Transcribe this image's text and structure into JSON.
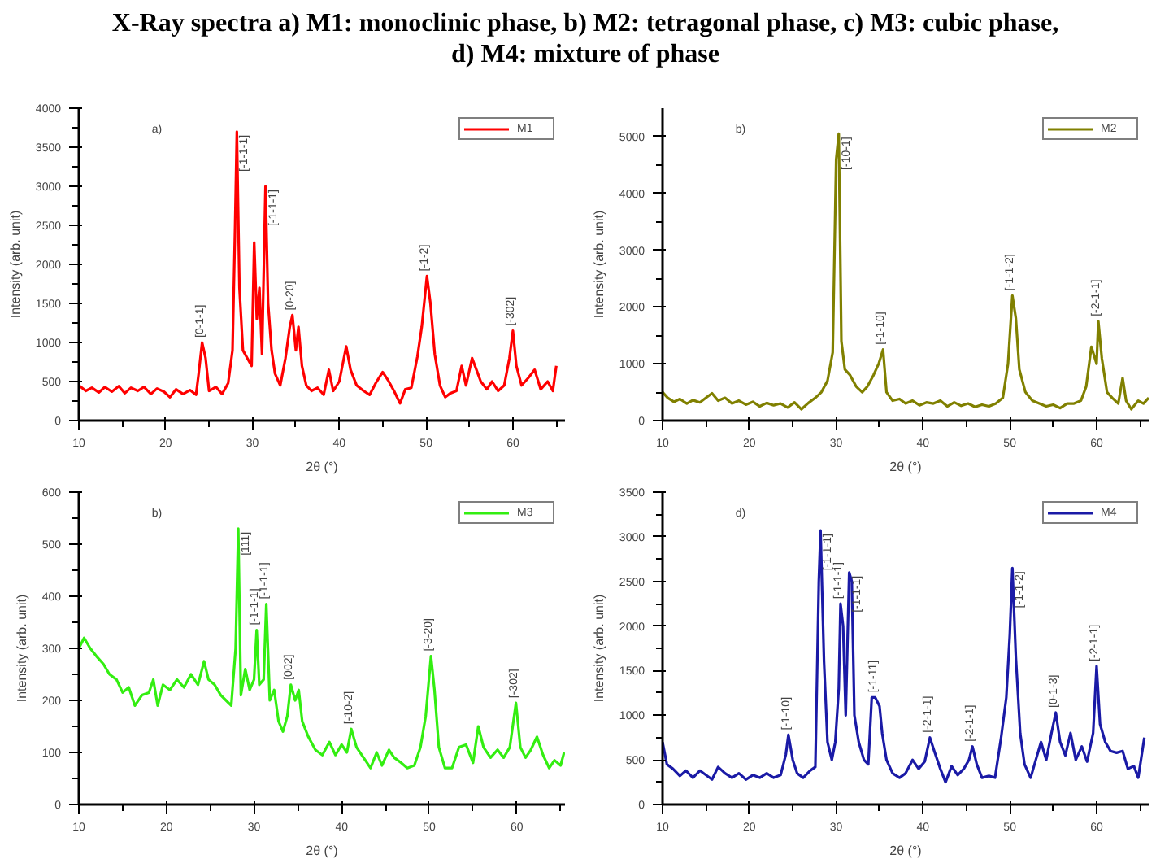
{
  "chart_data": [
    {
      "type": "line",
      "title": "X-Ray spectra a) M1: monoclinic phase, b) M2: tetragonal phase, c) M3: cubic phase, d) M4: mixture of phase",
      "xlabel": "2θ (°)",
      "ylabel": "Intensity (arb. unit)",
      "xlim": [
        10,
        66
      ],
      "ylim": [
        0,
        4000
      ],
      "xticks": [
        10,
        20,
        30,
        40,
        50,
        60
      ],
      "yticks": [
        0,
        500,
        1000,
        1500,
        2000,
        2500,
        3000,
        3500,
        4000
      ],
      "grid": false,
      "legend": "top right",
      "annotations": [
        "a)",
        {
          "text": "[0-1-1]",
          "x": 24.2,
          "y": 1000
        },
        {
          "text": "[-1-1-1]",
          "x": 28.2,
          "y": 3700
        },
        {
          "text": "[-1-1-1]",
          "x": 31.5,
          "y": 3000
        },
        {
          "text": "[0-20]",
          "x": 34.6,
          "y": 1350
        },
        {
          "text": "[-1-2]",
          "x": 50.1,
          "y": 1850
        },
        {
          "text": "[-302]",
          "x": 60,
          "y": 1150
        }
      ],
      "series": [
        {
          "name": "M1",
          "color": "#ff0000",
          "x": [
            10,
            10.8,
            11.5,
            12.3,
            13,
            13.8,
            14.6,
            15.3,
            16,
            16.8,
            17.5,
            18.3,
            19,
            19.8,
            20.5,
            21.2,
            22,
            22.8,
            23.5,
            23.8,
            24.2,
            24.6,
            25,
            25.8,
            26.5,
            27.2,
            27.7,
            28.0,
            28.2,
            28.5,
            28.9,
            29.4,
            29.9,
            30.2,
            30.5,
            30.8,
            31.1,
            31.5,
            31.8,
            32.2,
            32.6,
            33.2,
            33.8,
            34.3,
            34.6,
            35,
            35.3,
            35.7,
            36.2,
            36.8,
            37.5,
            38.2,
            38.8,
            39.3,
            40,
            40.8,
            41.3,
            42,
            42.8,
            43.5,
            44.2,
            45,
            45.6,
            46.3,
            47,
            47.6,
            48.3,
            49,
            49.5,
            50.1,
            50.5,
            51,
            51.6,
            52.2,
            52.8,
            53.5,
            54.1,
            54.6,
            55.3,
            55.8,
            56.3,
            57,
            57.6,
            58.3,
            59,
            59.6,
            60,
            60.4,
            61,
            61.8,
            62.5,
            63.2,
            64,
            64.6,
            65
          ],
          "values": [
            450,
            380,
            420,
            360,
            430,
            370,
            440,
            350,
            420,
            380,
            430,
            340,
            410,
            370,
            300,
            400,
            340,
            390,
            330,
            600,
            1000,
            800,
            380,
            430,
            340,
            480,
            900,
            2500,
            3700,
            1700,
            900,
            800,
            700,
            2280,
            1300,
            1700,
            850,
            3000,
            1500,
            900,
            600,
            450,
            800,
            1200,
            1350,
            900,
            1200,
            700,
            450,
            380,
            420,
            330,
            650,
            380,
            500,
            950,
            650,
            450,
            380,
            330,
            480,
            620,
            520,
            380,
            220,
            400,
            420,
            820,
            1200,
            1850,
            1500,
            850,
            450,
            300,
            350,
            380,
            700,
            450,
            800,
            650,
            500,
            400,
            500,
            380,
            450,
            800,
            1150,
            700,
            450,
            550,
            650,
            400,
            500,
            380,
            700
          ]
        }
      ]
    },
    {
      "type": "line",
      "xlabel": "2θ (°)",
      "ylabel": "Intensity (arb. unit)",
      "xlim": [
        10,
        66
      ],
      "ylim": [
        0,
        5500
      ],
      "xticks": [
        10,
        20,
        30,
        40,
        50,
        60
      ],
      "yticks": [
        0,
        1000,
        2000,
        3000,
        4000,
        5000
      ],
      "grid": false,
      "legend": "top right",
      "annotations": [
        "b)",
        {
          "text": "[-10-1]",
          "x": 30.3,
          "y": 5050
        },
        {
          "text": "[-1-10]",
          "x": 35.4,
          "y": 1250
        },
        {
          "text": "[-1-1-2]",
          "x": 50.3,
          "y": 2200
        },
        {
          "text": "[-2-1-1]",
          "x": 60.2,
          "y": 1750
        }
      ],
      "series": [
        {
          "name": "M2",
          "color": "#808000",
          "x": [
            10,
            10.6,
            11.3,
            12,
            12.8,
            13.5,
            14.3,
            15,
            15.7,
            16.4,
            17.2,
            18,
            18.8,
            19.6,
            20.4,
            21.2,
            22,
            22.8,
            23.6,
            24.4,
            25.2,
            26,
            26.8,
            27.6,
            28.3,
            29,
            29.6,
            30,
            30.3,
            30.6,
            31,
            31.6,
            32.3,
            33,
            33.6,
            34.3,
            34.9,
            35.4,
            35.8,
            36.5,
            37.3,
            38,
            38.8,
            39.6,
            40.4,
            41.2,
            42,
            42.8,
            43.6,
            44.4,
            45.2,
            46,
            46.8,
            47.6,
            48.4,
            49.2,
            49.8,
            50.3,
            50.7,
            51.1,
            51.8,
            52.6,
            53.4,
            54.2,
            55,
            55.8,
            56.6,
            57.4,
            58.2,
            58.8,
            59.4,
            60,
            60.2,
            60.6,
            61.2,
            61.8,
            62.5,
            63,
            63.4,
            64,
            64.8,
            65.4,
            66
          ],
          "values": [
            500,
            400,
            330,
            380,
            300,
            360,
            320,
            400,
            480,
            350,
            400,
            300,
            350,
            280,
            330,
            250,
            310,
            270,
            300,
            230,
            320,
            200,
            310,
            400,
            500,
            700,
            1200,
            4600,
            5050,
            1400,
            900,
            800,
            600,
            500,
            600,
            800,
            1000,
            1250,
            500,
            350,
            380,
            300,
            350,
            270,
            320,
            300,
            350,
            250,
            320,
            260,
            300,
            240,
            280,
            250,
            300,
            400,
            1000,
            2200,
            1800,
            900,
            500,
            350,
            300,
            250,
            280,
            220,
            300,
            300,
            350,
            600,
            1300,
            1000,
            1750,
            1100,
            500,
            400,
            300,
            750,
            350,
            200,
            350,
            300,
            400
          ]
        }
      ]
    },
    {
      "type": "line",
      "xlabel": "2θ (°)",
      "ylabel": "Intensity (arb. unit)",
      "xlim": [
        10,
        65.5
      ],
      "ylim": [
        0,
        600
      ],
      "xticks": [
        10,
        20,
        30,
        40,
        50,
        60
      ],
      "yticks": [
        0,
        100,
        200,
        300,
        400,
        500,
        600
      ],
      "grid": false,
      "legend": "top right",
      "annotations": [
        "b)",
        {
          "text": "[111]",
          "x": 28.2,
          "y": 530
        },
        {
          "text": "[-1-1-1]",
          "x": 30.3,
          "y": 335
        },
        {
          "text": "[-1-1-1]",
          "x": 31.4,
          "y": 385
        },
        {
          "text": "[002]",
          "x": 34.2,
          "y": 230
        },
        {
          "text": "[-10-2]",
          "x": 41.1,
          "y": 145
        },
        {
          "text": "[-3-20]",
          "x": 50.2,
          "y": 285
        },
        {
          "text": "[-302]",
          "x": 59.9,
          "y": 195
        }
      ],
      "series": [
        {
          "name": "M3",
          "color": "#33ee11",
          "x": [
            10,
            10.6,
            11.3,
            12,
            12.8,
            13.5,
            14.3,
            15,
            15.7,
            16.4,
            17.2,
            18,
            18.5,
            19,
            19.6,
            20.4,
            21.2,
            22,
            22.8,
            23.6,
            24.3,
            24.8,
            25.5,
            26.2,
            26.8,
            27.4,
            27.9,
            28.2,
            28.5,
            29,
            29.5,
            30,
            30.3,
            30.6,
            31.1,
            31.4,
            31.8,
            32.3,
            32.8,
            33.3,
            33.8,
            34.2,
            34.7,
            35.1,
            35.5,
            36.2,
            37,
            37.8,
            38.6,
            39.3,
            40,
            40.6,
            41.1,
            41.7,
            42.5,
            43.3,
            44,
            44.6,
            45.4,
            46,
            46.8,
            47.5,
            48.3,
            49,
            49.6,
            50.2,
            50.6,
            51.1,
            51.8,
            52.6,
            53.4,
            54.2,
            55,
            55.6,
            56.2,
            57,
            57.8,
            58.5,
            59.2,
            59.9,
            60.4,
            61,
            61.6,
            62.3,
            63,
            63.7,
            64.3,
            65,
            65.4
          ],
          "values": [
            300,
            320,
            300,
            285,
            270,
            250,
            240,
            215,
            225,
            190,
            210,
            215,
            240,
            190,
            230,
            220,
            240,
            225,
            250,
            230,
            275,
            240,
            230,
            210,
            200,
            190,
            300,
            530,
            210,
            260,
            220,
            240,
            335,
            230,
            240,
            385,
            200,
            220,
            160,
            140,
            170,
            230,
            200,
            220,
            160,
            130,
            105,
            95,
            120,
            95,
            115,
            100,
            145,
            110,
            90,
            70,
            100,
            75,
            105,
            90,
            80,
            70,
            75,
            110,
            170,
            285,
            220,
            110,
            70,
            70,
            110,
            115,
            80,
            150,
            110,
            90,
            105,
            90,
            110,
            195,
            110,
            90,
            105,
            130,
            95,
            70,
            85,
            75,
            100
          ]
        }
      ]
    },
    {
      "type": "line",
      "xlabel": "2θ (°)",
      "ylabel": "Intensity (arb. unit)",
      "xlim": [
        10,
        66
      ],
      "ylim": [
        0,
        3500
      ],
      "xticks": [
        10,
        20,
        30,
        40,
        50,
        60
      ],
      "yticks": [
        0,
        500,
        1000,
        1500,
        2000,
        2500,
        3000,
        3500
      ],
      "grid": false,
      "legend": "top right",
      "annotations": [
        "d)",
        {
          "text": "[-1-10]",
          "x": 24.5,
          "y": 780
        },
        {
          "text": "[-1-1-1]",
          "x": 28.2,
          "y": 3070
        },
        {
          "text": "[-1-1-1]",
          "x": 30.5,
          "y": 2250
        },
        {
          "text": "[-1-1-1]",
          "x": 31.5,
          "y": 2600
        },
        {
          "text": "[-1-11]",
          "x": 34.5,
          "y": 1200
        },
        {
          "text": "[-2-1-1]",
          "x": 40.8,
          "y": 750
        },
        {
          "text": "[-2-1-1]",
          "x": 45.7,
          "y": 650
        },
        {
          "text": "[-1-1-2]",
          "x": 50.3,
          "y": 2650
        },
        {
          "text": "[0-1-3]",
          "x": 55.3,
          "y": 1030
        },
        {
          "text": "[-2-1-1]",
          "x": 60,
          "y": 1550
        }
      ],
      "series": [
        {
          "name": "M4",
          "color": "#1a1aa6",
          "x": [
            10,
            10.5,
            11.2,
            12,
            12.7,
            13.5,
            14.3,
            15,
            15.7,
            16.4,
            17.2,
            18,
            18.8,
            19.6,
            20.4,
            21.2,
            22,
            22.8,
            23.6,
            24.2,
            24.5,
            25,
            25.5,
            26.2,
            27,
            27.6,
            28,
            28.2,
            28.6,
            29,
            29.5,
            29.9,
            30.3,
            30.5,
            30.8,
            31.1,
            31.5,
            31.8,
            32.1,
            32.6,
            33.2,
            33.7,
            34.1,
            34.5,
            35,
            35.3,
            35.8,
            36.5,
            37.3,
            38,
            38.8,
            39.5,
            40.2,
            40.8,
            41.3,
            42,
            42.6,
            43.3,
            44,
            44.7,
            45.3,
            45.7,
            46.2,
            46.8,
            47.6,
            48.3,
            49,
            49.6,
            50,
            50.3,
            50.7,
            51.2,
            51.7,
            52.4,
            53,
            53.6,
            54.2,
            54.8,
            55.3,
            55.8,
            56.4,
            57,
            57.6,
            58.3,
            58.9,
            59.6,
            60,
            60.4,
            61,
            61.6,
            62.3,
            63,
            63.6,
            64.3,
            64.8,
            65.5
          ],
          "values": [
            700,
            450,
            400,
            320,
            380,
            300,
            380,
            330,
            280,
            420,
            350,
            300,
            350,
            280,
            330,
            300,
            350,
            300,
            330,
            560,
            780,
            500,
            350,
            300,
            380,
            420,
            2500,
            3070,
            1600,
            700,
            500,
            700,
            1300,
            2250,
            2000,
            1000,
            2600,
            2500,
            1000,
            700,
            500,
            450,
            1200,
            1200,
            1100,
            800,
            500,
            350,
            300,
            350,
            500,
            400,
            480,
            750,
            600,
            400,
            250,
            430,
            330,
            400,
            500,
            650,
            450,
            300,
            320,
            300,
            750,
            1200,
            1900,
            2650,
            1650,
            800,
            450,
            300,
            500,
            700,
            500,
            800,
            1030,
            700,
            550,
            800,
            500,
            650,
            480,
            800,
            1550,
            900,
            700,
            600,
            580,
            600,
            400,
            430,
            300,
            750
          ]
        }
      ]
    }
  ]
}
